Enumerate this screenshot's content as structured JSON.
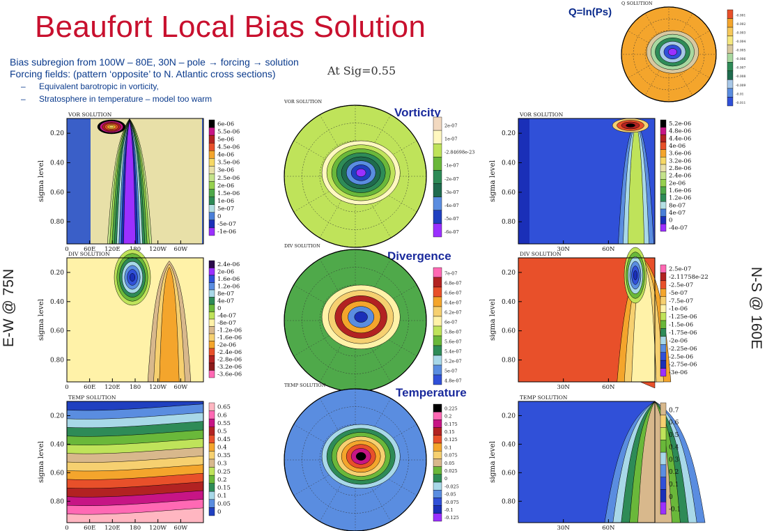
{
  "title": "Beaufort Local Bias Solution",
  "lines": [
    "Bias subregion from 100W – 80E, 30N – pole → forcing → solution",
    "Forcing fields: (pattern ‘opposite’ to N. Atlantic cross sections)"
  ],
  "bullets": [
    "Equivalent barotropic in vorticity,",
    "Stratosphere in temperature – model too warm"
  ],
  "bullet_mark": "–",
  "sigma_label": "At Sig=0.55",
  "q_label": "Q=ln(Ps)",
  "section_titles": {
    "vorticity": "Vorticity",
    "divergence": "Divergence",
    "temperature": "Temperature"
  },
  "side_labels": {
    "left": "E-W @ 75N",
    "right": "N-S @ 160E"
  },
  "colors": {
    "title": "#c8102e",
    "text": "#0a3a8c",
    "section": "#1a2a9c"
  },
  "chart_data": [
    {
      "type": "heatmap",
      "panel": "vor-ew",
      "label": "VOR SOLUTION",
      "ylabel": "sigma level",
      "yticks": [
        "0.20",
        "0.40",
        "0.60",
        "0.80"
      ],
      "xticks": [
        "0",
        "60E",
        "120E",
        "180",
        "120W",
        "60W"
      ],
      "legend": [
        "6e-06",
        "5.5e-06",
        "5e-06",
        "4.5e-06",
        "4e-06",
        "3.5e-06",
        "3e-06",
        "2.5e-06",
        "2e-06",
        "1.5e-06",
        "1e-06",
        "5e-07",
        "0",
        "-5e-07",
        "-1e-06"
      ]
    },
    {
      "type": "heatmap",
      "panel": "vor-map",
      "label": "VOR SOLUTION",
      "legend": [
        "2e-07",
        "1e-07",
        "-2.84698e-23",
        "-1e-07",
        "-2e-07",
        "-3e-07",
        "-4e-07",
        "-5e-07",
        "-6e-07"
      ]
    },
    {
      "type": "heatmap",
      "panel": "vor-ns",
      "label": "VOR SOLUTION",
      "ylabel": "sigma level",
      "yticks": [
        "0.20",
        "0.40",
        "0.60",
        "0.80"
      ],
      "xticks": [
        "30N",
        "60N"
      ],
      "legend": [
        "5.2e-06",
        "4.8e-06",
        "4.4e-06",
        "4e-06",
        "3.6e-06",
        "3.2e-06",
        "2.8e-06",
        "2.4e-06",
        "2e-06",
        "1.6e-06",
        "1.2e-06",
        "8e-07",
        "4e-07",
        "0",
        "-4e-07"
      ]
    },
    {
      "type": "heatmap",
      "panel": "div-ew",
      "label": "DIV SOLUTION",
      "ylabel": "sigma level",
      "yticks": [
        "0.20",
        "0.40",
        "0.60",
        "0.80"
      ],
      "xticks": [
        "0",
        "60E",
        "120E",
        "180",
        "120W",
        "60W"
      ],
      "legend": [
        "2.4e-06",
        "2e-06",
        "1.6e-06",
        "1.2e-06",
        "8e-07",
        "4e-07",
        "0",
        "-4e-07",
        "-8e-07",
        "-1.2e-06",
        "-1.6e-06",
        "-2e-06",
        "-2.4e-06",
        "-2.8e-06",
        "-3.2e-06",
        "-3.6e-06"
      ]
    },
    {
      "type": "heatmap",
      "panel": "div-map",
      "label": "DIV SOLUTION",
      "legend": [
        "7e-07",
        "6.8e-07",
        "6.6e-07",
        "6.4e-07",
        "6.2e-07",
        "6e-07",
        "5.8e-07",
        "5.6e-07",
        "5.4e-07",
        "5.2e-07",
        "5e-07",
        "4.8e-07"
      ]
    },
    {
      "type": "heatmap",
      "panel": "div-ns",
      "label": "DIV SOLUTION",
      "ylabel": "sigma level",
      "yticks": [
        "0.20",
        "0.40",
        "0.60",
        "0.80"
      ],
      "xticks": [
        "30N",
        "60N"
      ],
      "legend": [
        "2.5e-07",
        "-2.11758e-22",
        "-2.5e-07",
        "-5e-07",
        "-7.5e-07",
        "-1e-06",
        "-1.25e-06",
        "-1.5e-06",
        "-1.75e-06",
        "-2e-06",
        "-2.25e-06",
        "-2.5e-06",
        "-2.75e-06",
        "-3e-06"
      ]
    },
    {
      "type": "heatmap",
      "panel": "temp-ew",
      "label": "TEMP SOLUTION",
      "ylabel": "sigma level",
      "yticks": [
        "0.20",
        "0.40",
        "0.60",
        "0.80"
      ],
      "xticks": [
        "0",
        "60E",
        "120E",
        "180",
        "120W",
        "60W"
      ],
      "legend": [
        "0.65",
        "0.6",
        "0.55",
        "0.5",
        "0.45",
        "0.4",
        "0.35",
        "0.3",
        "0.25",
        "0.2",
        "0.15",
        "0.1",
        "0.05",
        "0"
      ]
    },
    {
      "type": "heatmap",
      "panel": "temp-map",
      "label": "TEMP SOLUTION",
      "legend": [
        "0.225",
        "0.2",
        "0.175",
        "0.15",
        "0.125",
        "0.1",
        "0.075",
        "0.05",
        "0.025",
        "0",
        "-0.025",
        "-0.05",
        "-0.075",
        "-0.1",
        "-0.125"
      ]
    },
    {
      "type": "heatmap",
      "panel": "temp-ns",
      "label": "TEMP SOLUTION",
      "ylabel": "sigma level",
      "yticks": [
        "0.20",
        "0.40",
        "0.60",
        "0.80"
      ],
      "xticks": [
        "30N",
        "60N"
      ],
      "legend": [
        "0.7",
        "0.6",
        "0.5",
        "0.4",
        "0.3",
        "0.2",
        "0.1",
        "0",
        "-0.1"
      ]
    },
    {
      "type": "heatmap",
      "panel": "q-map",
      "label": "Q SOLUTION",
      "legend": [
        "-0.001",
        "-0.002",
        "-0.003",
        "-0.004",
        "-0.005",
        "-0.006",
        "-0.007",
        "-0.008",
        "-0.009",
        "-0.01",
        "-0.011"
      ]
    }
  ]
}
